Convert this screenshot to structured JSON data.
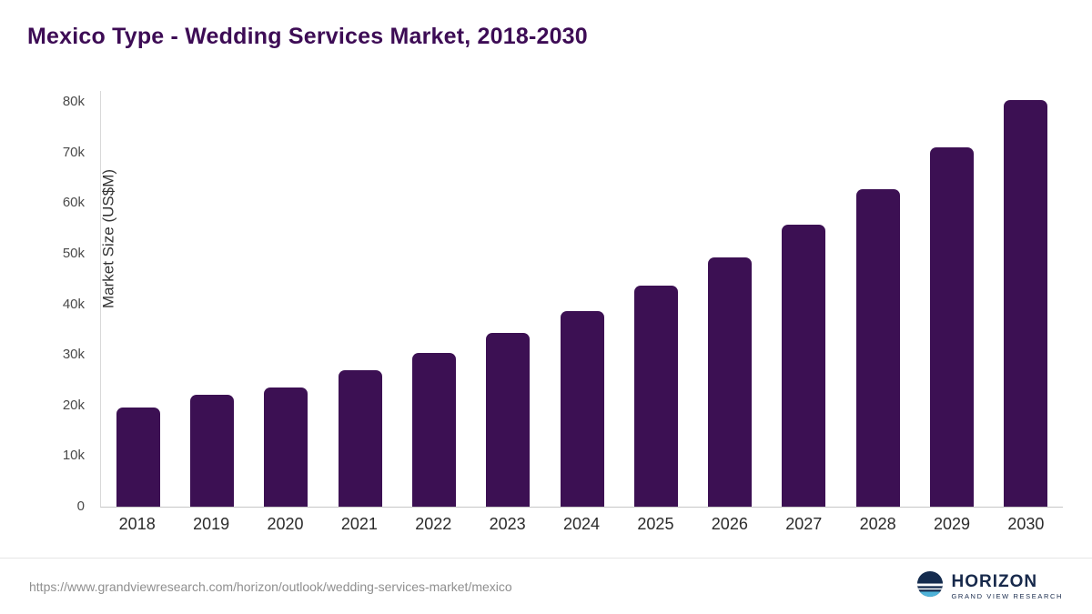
{
  "header": {
    "title": "Mexico Type - Wedding Services Market, 2018-2030"
  },
  "chart_data": {
    "type": "bar",
    "title": "Mexico Type - Wedding Services Market, 2018-2030",
    "categories": [
      "2018",
      "2019",
      "2020",
      "2021",
      "2022",
      "2023",
      "2024",
      "2025",
      "2026",
      "2027",
      "2028",
      "2029",
      "2030"
    ],
    "values": [
      19600,
      22200,
      23500,
      27000,
      30400,
      34300,
      38600,
      43600,
      49200,
      55700,
      62800,
      71000,
      80300
    ],
    "xlabel": "",
    "ylabel": "Market Size (US$M)",
    "ylim": [
      0,
      80000
    ],
    "ytick_step": 10000,
    "yticks": [
      "0",
      "10k",
      "20k",
      "30k",
      "40k",
      "50k",
      "60k",
      "70k",
      "80k"
    ],
    "grid": false,
    "legend": "none",
    "bar_color": "#3c1053"
  },
  "colors": {
    "title": "#3d0c55",
    "bar": "#3c1053",
    "axis": "#c6c6c6"
  },
  "footer": {
    "source_url": "https://www.grandviewresearch.com/horizon/outlook/wedding-services-market/mexico",
    "brand_name": "HORIZON",
    "brand_tagline": "GRAND VIEW RESEARCH"
  }
}
